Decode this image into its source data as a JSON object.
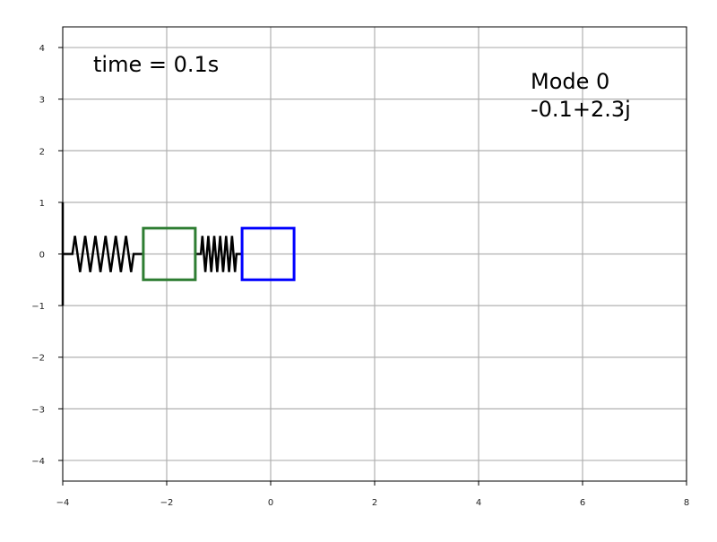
{
  "chart_data": {
    "type": "scatter",
    "title": "",
    "xlabel": "",
    "ylabel": "",
    "xlim": [
      -4,
      8
    ],
    "ylim": [
      -4.4,
      4.4
    ],
    "grid": true,
    "xticks": [
      -4,
      -2,
      0,
      2,
      4,
      6,
      8
    ],
    "yticks": [
      -4,
      -3,
      -2,
      -1,
      0,
      1,
      2,
      3,
      4
    ],
    "xtick_labels": [
      "−4",
      "−2",
      "0",
      "2",
      "4",
      "6",
      "8"
    ],
    "ytick_labels": [
      "−4",
      "−3",
      "−2",
      "−1",
      "0",
      "1",
      "2",
      "3",
      "4"
    ],
    "annotations": {
      "time": "time = 0.1s",
      "mode": "Mode 0",
      "eigenvalue": "-0.1+2.3j"
    },
    "wall": {
      "x": -4.0,
      "y_range": [
        -1,
        1
      ]
    },
    "masses": [
      {
        "name": "mass-1",
        "center_x": -1.95,
        "center_y": 0,
        "width": 1.0,
        "height": 1.0,
        "color": "#2e7d32"
      },
      {
        "name": "mass-2",
        "center_x": -0.05,
        "center_y": 0,
        "width": 1.0,
        "height": 1.0,
        "color": "#0000ff"
      }
    ],
    "springs": [
      {
        "name": "spring-1",
        "x_start": -4.0,
        "x_end": -2.45,
        "coils": 6,
        "amplitude": 0.35,
        "color": "#000000"
      },
      {
        "name": "spring-2",
        "x_start": -1.45,
        "x_end": -0.55,
        "coils": 6,
        "amplitude": 0.35,
        "color": "#000000"
      }
    ],
    "colors": {
      "grid": "#b0b0b0",
      "axis": "#000000"
    }
  }
}
